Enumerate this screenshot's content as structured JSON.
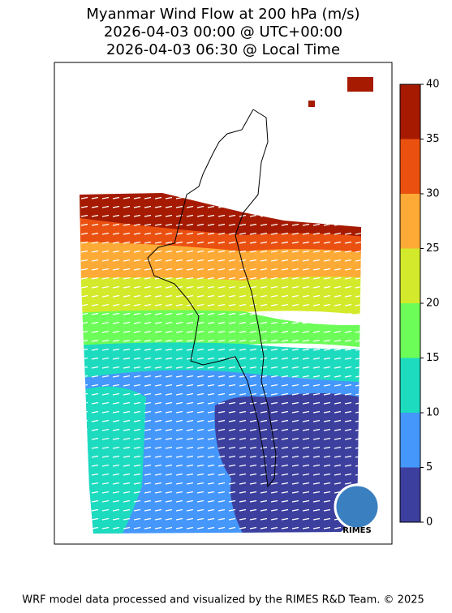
{
  "title": [
    "Myanmar Wind Flow at 200 hPa (m/s)",
    "2026-04-03 00:00 @ UTC+00:00",
    "2026-04-03 06:30 @ Local Time"
  ],
  "colorbar": {
    "ticks": [
      0,
      5,
      10,
      15,
      20,
      25,
      30,
      35,
      40
    ],
    "colors": [
      "#3d3f9e",
      "#4597fb",
      "#1ddbbf",
      "#6cfd58",
      "#d3ea2c",
      "#feaa36",
      "#ea5010",
      "#a51a00"
    ]
  },
  "logo_text": "RIMES",
  "footer": "WRF model data processed and visualized by the RIMES R&D Team. © 2025"
}
